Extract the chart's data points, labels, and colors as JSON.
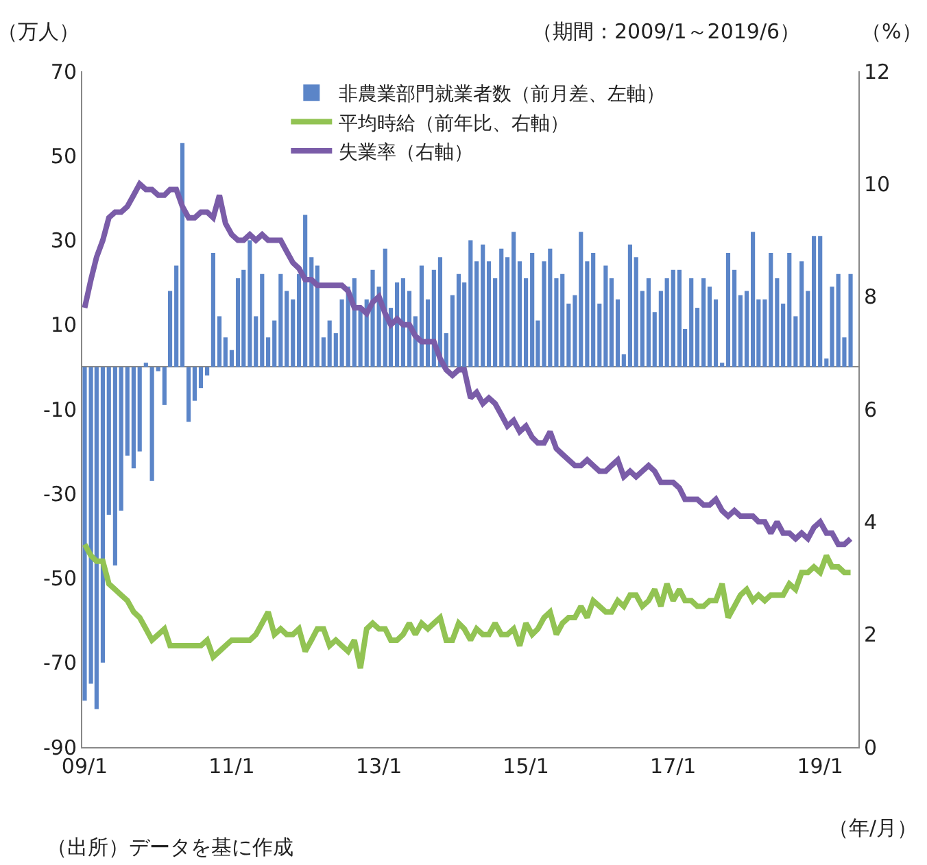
{
  "chart_data": {
    "type": "bar",
    "x": [
      "2009-01",
      "2009-02",
      "2009-03",
      "2009-04",
      "2009-05",
      "2009-06",
      "2009-07",
      "2009-08",
      "2009-09",
      "2009-10",
      "2009-11",
      "2009-12",
      "2010-01",
      "2010-02",
      "2010-03",
      "2010-04",
      "2010-05",
      "2010-06",
      "2010-07",
      "2010-08",
      "2010-09",
      "2010-10",
      "2010-11",
      "2010-12",
      "2011-01",
      "2011-02",
      "2011-03",
      "2011-04",
      "2011-05",
      "2011-06",
      "2011-07",
      "2011-08",
      "2011-09",
      "2011-10",
      "2011-11",
      "2011-12",
      "2012-01",
      "2012-02",
      "2012-03",
      "2012-04",
      "2012-05",
      "2012-06",
      "2012-07",
      "2012-08",
      "2012-09",
      "2012-10",
      "2012-11",
      "2012-12",
      "2013-01",
      "2013-02",
      "2013-03",
      "2013-04",
      "2013-05",
      "2013-06",
      "2013-07",
      "2013-08",
      "2013-09",
      "2013-10",
      "2013-11",
      "2013-12",
      "2014-01",
      "2014-02",
      "2014-03",
      "2014-04",
      "2014-05",
      "2014-06",
      "2014-07",
      "2014-08",
      "2014-09",
      "2014-10",
      "2014-11",
      "2014-12",
      "2015-01",
      "2015-02",
      "2015-03",
      "2015-04",
      "2015-05",
      "2015-06",
      "2015-07",
      "2015-08",
      "2015-09",
      "2015-10",
      "2015-11",
      "2015-12",
      "2016-01",
      "2016-02",
      "2016-03",
      "2016-04",
      "2016-05",
      "2016-06",
      "2016-07",
      "2016-08",
      "2016-09",
      "2016-10",
      "2016-11",
      "2016-12",
      "2017-01",
      "2017-02",
      "2017-03",
      "2017-04",
      "2017-05",
      "2017-06",
      "2017-07",
      "2017-08",
      "2017-09",
      "2017-10",
      "2017-11",
      "2017-12",
      "2018-01",
      "2018-02",
      "2018-03",
      "2018-04",
      "2018-05",
      "2018-06",
      "2018-07",
      "2018-08",
      "2018-09",
      "2018-10",
      "2018-11",
      "2018-12",
      "2019-01",
      "2019-02",
      "2019-03",
      "2019-04",
      "2019-05",
      "2019-06"
    ],
    "series": [
      {
        "name": "非農業部門就業者数（前月差、左軸）",
        "axis": "y",
        "color": "#5b85c8",
        "values": [
          -79,
          -75,
          -81,
          -70,
          -35,
          -47,
          -34,
          -21,
          -24,
          -20,
          1,
          -27,
          -1,
          -9,
          18,
          24,
          53,
          -13,
          -8,
          -5,
          -2,
          27,
          12,
          7,
          4,
          21,
          23,
          30,
          12,
          22,
          7,
          11,
          22,
          18,
          16,
          22,
          36,
          26,
          24,
          7,
          11,
          8,
          16,
          19,
          21,
          14,
          16,
          23,
          19,
          28,
          14,
          20,
          21,
          18,
          12,
          24,
          16,
          23,
          26,
          8,
          17,
          22,
          20,
          30,
          25,
          29,
          25,
          21,
          28,
          26,
          32,
          25,
          21,
          27,
          11,
          25,
          28,
          21,
          22,
          15,
          17,
          32,
          25,
          27,
          15,
          24,
          21,
          16,
          3,
          29,
          26,
          18,
          21,
          13,
          18,
          21,
          23,
          23,
          9,
          21,
          14,
          21,
          19,
          16,
          1,
          27,
          23,
          17,
          18,
          32,
          16,
          16,
          27,
          21,
          15,
          27,
          12,
          25,
          18,
          31,
          31,
          2,
          19,
          22,
          7,
          22
        ]
      },
      {
        "name": "平均時給（前年比、右軸）",
        "type": "line",
        "axis": "y2",
        "color": "#92c353",
        "values": [
          3.6,
          3.4,
          3.3,
          3.3,
          2.9,
          2.8,
          2.7,
          2.6,
          2.4,
          2.3,
          2.1,
          1.9,
          2.0,
          2.1,
          1.8,
          1.8,
          1.8,
          1.8,
          1.8,
          1.8,
          1.9,
          1.6,
          1.7,
          1.8,
          1.9,
          1.9,
          1.9,
          1.9,
          2.0,
          2.2,
          2.4,
          2.0,
          2.1,
          2.0,
          2.0,
          2.1,
          1.7,
          1.9,
          2.1,
          2.1,
          1.8,
          1.9,
          1.8,
          1.7,
          1.9,
          1.4,
          2.1,
          2.2,
          2.1,
          2.1,
          1.9,
          1.9,
          2.0,
          2.2,
          2.0,
          2.2,
          2.1,
          2.2,
          2.3,
          1.9,
          1.9,
          2.2,
          2.1,
          1.9,
          2.1,
          2.0,
          2.0,
          2.2,
          2.0,
          2.0,
          2.1,
          1.8,
          2.2,
          2.0,
          2.1,
          2.3,
          2.4,
          2.0,
          2.2,
          2.3,
          2.3,
          2.5,
          2.3,
          2.6,
          2.5,
          2.4,
          2.4,
          2.6,
          2.5,
          2.7,
          2.7,
          2.5,
          2.6,
          2.8,
          2.5,
          2.9,
          2.6,
          2.8,
          2.6,
          2.6,
          2.5,
          2.5,
          2.6,
          2.6,
          2.9,
          2.3,
          2.5,
          2.7,
          2.8,
          2.6,
          2.7,
          2.6,
          2.7,
          2.7,
          2.7,
          2.9,
          2.8,
          3.1,
          3.1,
          3.2,
          3.1,
          3.4,
          3.2,
          3.2,
          3.1,
          3.1
        ]
      },
      {
        "name": "失業率（右軸）",
        "type": "line",
        "axis": "y2",
        "color": "#7a5ca8",
        "values": [
          7.8,
          8.3,
          8.7,
          9.0,
          9.4,
          9.5,
          9.5,
          9.6,
          9.8,
          10.0,
          9.9,
          9.9,
          9.8,
          9.8,
          9.9,
          9.9,
          9.6,
          9.4,
          9.4,
          9.5,
          9.5,
          9.4,
          9.8,
          9.3,
          9.1,
          9.0,
          9.0,
          9.1,
          9.0,
          9.1,
          9.0,
          9.0,
          9.0,
          8.8,
          8.6,
          8.5,
          8.3,
          8.3,
          8.2,
          8.2,
          8.2,
          8.2,
          8.2,
          8.1,
          7.8,
          7.8,
          7.7,
          7.9,
          8.0,
          7.7,
          7.5,
          7.6,
          7.5,
          7.5,
          7.3,
          7.2,
          7.2,
          7.2,
          6.9,
          6.7,
          6.6,
          6.7,
          6.7,
          6.2,
          6.3,
          6.1,
          6.2,
          6.1,
          5.9,
          5.7,
          5.8,
          5.6,
          5.7,
          5.5,
          5.4,
          5.4,
          5.6,
          5.3,
          5.2,
          5.1,
          5.0,
          5.0,
          5.1,
          5.0,
          4.9,
          4.9,
          5.0,
          5.1,
          4.8,
          4.9,
          4.8,
          4.9,
          5.0,
          4.9,
          4.7,
          4.7,
          4.7,
          4.6,
          4.4,
          4.4,
          4.4,
          4.3,
          4.3,
          4.4,
          4.2,
          4.1,
          4.2,
          4.1,
          4.1,
          4.1,
          4.0,
          4.0,
          3.8,
          4.0,
          3.8,
          3.8,
          3.7,
          3.8,
          3.7,
          3.9,
          4.0,
          3.8,
          3.8,
          3.6,
          3.6,
          3.7
        ]
      }
    ],
    "ylabel": "（万人）",
    "y2label": "（%）",
    "xlabel": "（年/月）",
    "annotations": [
      "（期間：2009/1～2019/6）",
      "（出所）データを基に作成"
    ],
    "xlim": [
      "2008-12-20",
      "2019-07-10"
    ],
    "xticks": [
      {
        "value": "2009-01",
        "label": "09/1"
      },
      {
        "value": "2011-01",
        "label": "11/1"
      },
      {
        "value": "2013-01",
        "label": "13/1"
      },
      {
        "value": "2015-01",
        "label": "15/1"
      },
      {
        "value": "2017-01",
        "label": "17/1"
      },
      {
        "value": "2019-01",
        "label": "19/1"
      }
    ],
    "ylim": [
      -90,
      70
    ],
    "yticks": [
      -90,
      -70,
      -50,
      -30,
      -10,
      10,
      30,
      50,
      70
    ],
    "y2lim": [
      0,
      12
    ],
    "y2ticks": [
      0,
      2,
      4,
      6,
      8,
      10,
      12
    ],
    "legend": "top",
    "marker": "none",
    "line_style": "solid"
  }
}
